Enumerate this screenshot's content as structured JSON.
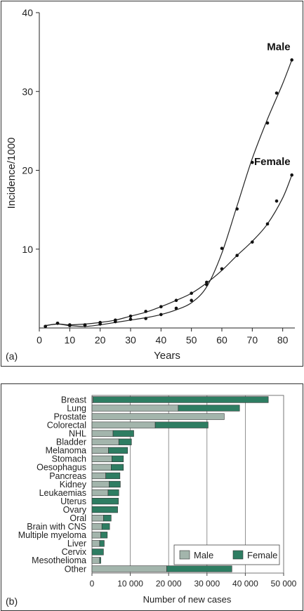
{
  "chart_data": [
    {
      "panel": "(a)",
      "type": "line",
      "xlabel": "Years",
      "ylabel": "Incidence/1000",
      "xlim": [
        0,
        84
      ],
      "ylim": [
        0,
        40
      ],
      "xticks": [
        0,
        10,
        20,
        30,
        40,
        50,
        60,
        70,
        80
      ],
      "yticks": [
        10,
        20,
        30,
        40
      ],
      "series": [
        {
          "name": "Male",
          "points": [
            [
              2,
              0.2
            ],
            [
              6,
              0.6
            ],
            [
              10,
              0.4
            ],
            [
              15,
              0.3
            ],
            [
              20,
              0.5
            ],
            [
              25,
              0.8
            ],
            [
              30,
              1.1
            ],
            [
              35,
              1.2
            ],
            [
              40,
              1.7
            ],
            [
              45,
              2.5
            ],
            [
              50,
              3.5
            ],
            [
              55,
              5.5
            ],
            [
              60,
              10.1
            ],
            [
              65,
              15.1
            ],
            [
              70,
              21
            ],
            [
              75,
              26
            ],
            [
              78,
              29.8
            ],
            [
              83,
              34
            ]
          ],
          "curve": [
            [
              2,
              0.3
            ],
            [
              6,
              0.5
            ],
            [
              10,
              0.3
            ],
            [
              15,
              0.2
            ],
            [
              20,
              0.4
            ],
            [
              25,
              0.7
            ],
            [
              30,
              1.0
            ],
            [
              35,
              1.3
            ],
            [
              40,
              1.7
            ],
            [
              45,
              2.3
            ],
            [
              50,
              3.2
            ],
            [
              55,
              5.2
            ],
            [
              60,
              9.5
            ],
            [
              65,
              15.5
            ],
            [
              70,
              21.5
            ],
            [
              75,
              26.5
            ],
            [
              80,
              31
            ],
            [
              83,
              34
            ]
          ]
        },
        {
          "name": "Female",
          "points": [
            [
              2,
              0.2
            ],
            [
              6,
              0.6
            ],
            [
              10,
              0.3
            ],
            [
              15,
              0.4
            ],
            [
              20,
              0.7
            ],
            [
              25,
              1.0
            ],
            [
              30,
              1.5
            ],
            [
              35,
              2.1
            ],
            [
              40,
              2.7
            ],
            [
              45,
              3.5
            ],
            [
              50,
              4.4
            ],
            [
              55,
              5.8
            ],
            [
              60,
              7.5
            ],
            [
              65,
              9.2
            ],
            [
              70,
              10.9
            ],
            [
              75,
              13.2
            ],
            [
              78,
              16.1
            ],
            [
              83,
              19.4
            ]
          ],
          "curve": [
            [
              2,
              0.3
            ],
            [
              6,
              0.5
            ],
            [
              10,
              0.4
            ],
            [
              15,
              0.5
            ],
            [
              20,
              0.7
            ],
            [
              25,
              1.0
            ],
            [
              30,
              1.5
            ],
            [
              35,
              2.0
            ],
            [
              40,
              2.7
            ],
            [
              45,
              3.5
            ],
            [
              50,
              4.4
            ],
            [
              55,
              5.7
            ],
            [
              60,
              7.3
            ],
            [
              65,
              9.2
            ],
            [
              70,
              11.0
            ],
            [
              75,
              13.2
            ],
            [
              80,
              16.5
            ],
            [
              83,
              19.4
            ]
          ]
        }
      ]
    },
    {
      "panel": "(b)",
      "type": "bar",
      "stacked": true,
      "orientation": "horizontal",
      "xlabel": "Number of new cases",
      "xlim": [
        0,
        50000
      ],
      "xticks": [
        0,
        10000,
        20000,
        30000,
        40000,
        50000
      ],
      "xtick_labels": [
        "0",
        "10 000",
        "20 000",
        "30 000",
        "40 000",
        "50 000"
      ],
      "legend_position": "bottom-right",
      "categories": [
        "Breast",
        "Lung",
        "Prostate",
        "Colorectal",
        "NHL",
        "Bladder",
        "Melanoma",
        "Stomach",
        "Oesophagus",
        "Pancreas",
        "Kidney",
        "Leukaemias",
        "Uterus",
        "Ovary",
        "Oral",
        "Brain with CNS",
        "Multiple myeloma",
        "Liver",
        "Cervix",
        "Mesothelioma",
        "Other"
      ],
      "series": [
        {
          "name": "Male",
          "color": "#a3b5ac",
          "values": [
            300,
            22500,
            34500,
            16500,
            5500,
            7000,
            4300,
            5200,
            5000,
            3600,
            4500,
            4200,
            0,
            0,
            3000,
            2600,
            2300,
            2000,
            0,
            2000,
            19500
          ]
        },
        {
          "name": "Female",
          "color": "#2e7d62",
          "values": [
            45700,
            16000,
            0,
            13800,
            5400,
            3300,
            5000,
            3000,
            3200,
            3700,
            2900,
            2800,
            6900,
            6700,
            2000,
            2000,
            1700,
            1200,
            3000,
            300,
            17000
          ]
        }
      ]
    }
  ]
}
